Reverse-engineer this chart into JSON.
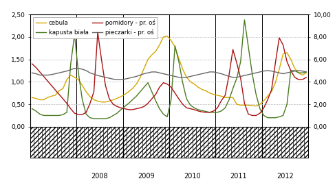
{
  "colors": {
    "cebula": "#D4A800",
    "kapusta_biala": "#4A7A20",
    "pomidory": "#AA1111",
    "pieczarki": "#666666"
  },
  "ylim_left": [
    0.0,
    2.5
  ],
  "ylim_right": [
    0.0,
    10.0
  ],
  "yticks_left": [
    0.0,
    0.5,
    1.0,
    1.5,
    2.0,
    2.5
  ],
  "yticks_right": [
    0.0,
    2.0,
    4.0,
    6.0,
    8.0,
    10.0
  ],
  "ytick_labels_left": [
    "0,00",
    "0,50",
    "1,00",
    "1,50",
    "2,00",
    "2,50"
  ],
  "ytick_labels_right": [
    "0,00",
    "2,00",
    "4,00",
    "6,00",
    "8,00",
    "10,00"
  ],
  "year_labels": [
    "2008",
    "2009",
    "2010",
    "2011",
    "2012"
  ],
  "background_color": "#FFFFFF",
  "grid_color": "#BBBBBB",
  "linewidth": 1.0,
  "n_months": 72,
  "start_month": 0,
  "cebula": [
    0.65,
    0.63,
    0.6,
    0.6,
    0.65,
    0.68,
    0.7,
    0.8,
    0.85,
    1.05,
    1.15,
    1.1,
    1.05,
    0.92,
    0.78,
    0.67,
    0.6,
    0.57,
    0.55,
    0.55,
    0.57,
    0.6,
    0.63,
    0.67,
    0.72,
    0.78,
    0.85,
    0.95,
    1.1,
    1.3,
    1.5,
    1.6,
    1.68,
    1.82,
    2.0,
    2.02,
    1.92,
    1.78,
    1.52,
    1.28,
    1.1,
    1.0,
    0.95,
    0.88,
    0.83,
    0.8,
    0.75,
    0.72,
    0.7,
    0.68,
    0.65,
    0.65,
    0.65,
    0.5,
    0.48,
    0.48,
    0.48,
    0.47,
    0.46,
    0.5,
    0.58,
    0.68,
    0.78,
    0.98,
    1.28,
    1.62,
    1.65,
    1.5,
    1.3,
    1.2,
    1.15,
    1.2
  ],
  "kapusta_biala": [
    0.4,
    0.35,
    0.28,
    0.25,
    0.25,
    0.25,
    0.25,
    0.25,
    0.27,
    0.32,
    1.4,
    2.05,
    1.2,
    0.6,
    0.28,
    0.2,
    0.18,
    0.18,
    0.18,
    0.18,
    0.2,
    0.25,
    0.3,
    0.38,
    0.45,
    0.52,
    0.6,
    0.68,
    0.78,
    0.88,
    0.98,
    0.78,
    0.58,
    0.4,
    0.28,
    0.22,
    0.6,
    1.8,
    1.45,
    0.98,
    0.62,
    0.48,
    0.42,
    0.38,
    0.36,
    0.34,
    0.32,
    0.32,
    0.32,
    0.35,
    0.42,
    0.6,
    0.85,
    1.08,
    1.45,
    2.38,
    1.78,
    1.18,
    0.72,
    0.4,
    0.25,
    0.2,
    0.2,
    0.2,
    0.22,
    0.25,
    0.5,
    1.25,
    1.25,
    1.2,
    1.2,
    1.22
  ],
  "pomidory_left": [
    1.4,
    1.32,
    1.22,
    1.12,
    1.02,
    0.92,
    0.82,
    0.72,
    0.62,
    0.52,
    0.4,
    0.3,
    0.27,
    0.27,
    0.32,
    0.52,
    0.78,
    2.1,
    1.48,
    0.92,
    0.62,
    0.5,
    0.45,
    0.42,
    0.4,
    0.38,
    0.38,
    0.4,
    0.42,
    0.45,
    0.52,
    0.62,
    0.72,
    0.88,
    0.98,
    0.95,
    0.88,
    0.75,
    0.62,
    0.5,
    0.42,
    0.4,
    0.38,
    0.35,
    0.33,
    0.32,
    0.32,
    0.35,
    0.42,
    0.58,
    0.7,
    1.15,
    1.72,
    1.42,
    1.08,
    0.52,
    0.28,
    0.25,
    0.25,
    0.3,
    0.42,
    0.6,
    0.82,
    1.42,
    1.98,
    1.82,
    1.45,
    1.25,
    1.1,
    1.05,
    1.05,
    1.1
  ],
  "pieczarki_left": [
    1.2,
    1.18,
    1.15,
    1.15,
    1.15,
    1.16,
    1.18,
    1.2,
    1.22,
    1.24,
    1.27,
    1.3,
    1.3,
    1.28,
    1.25,
    1.2,
    1.17,
    1.14,
    1.12,
    1.1,
    1.08,
    1.06,
    1.05,
    1.05,
    1.06,
    1.08,
    1.1,
    1.12,
    1.15,
    1.18,
    1.2,
    1.22,
    1.22,
    1.2,
    1.18,
    1.16,
    1.14,
    1.12,
    1.1,
    1.1,
    1.1,
    1.12,
    1.14,
    1.16,
    1.18,
    1.2,
    1.22,
    1.22,
    1.2,
    1.18,
    1.15,
    1.12,
    1.1,
    1.1,
    1.12,
    1.14,
    1.16,
    1.18,
    1.2,
    1.22,
    1.24,
    1.25,
    1.24,
    1.22,
    1.2,
    1.18,
    1.2,
    1.22,
    1.24,
    1.25,
    1.24,
    1.22
  ]
}
